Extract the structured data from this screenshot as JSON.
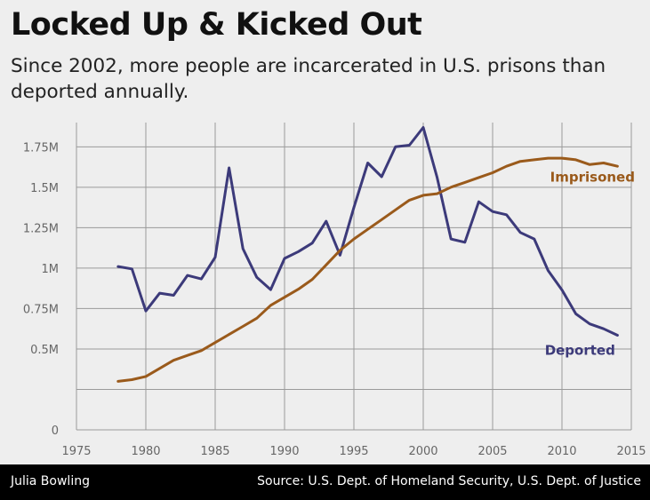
{
  "header": {
    "title": "Locked Up & Kicked Out",
    "subtitle": "Since 2002, more people are incarcerated in U.S. prisons than deported annually."
  },
  "footer": {
    "credit": "Julia Bowling",
    "source": "Source: U.S. Dept. of Homeland Security, U.S. Dept. of Justice"
  },
  "chart_data": {
    "type": "line",
    "xlim": [
      1975,
      2015
    ],
    "ylim": [
      0,
      1900000
    ],
    "x_ticks": [
      1975,
      1980,
      1985,
      1990,
      1995,
      2000,
      2005,
      2010,
      2015
    ],
    "y_ticks": [
      0,
      250000,
      500000,
      750000,
      1000000,
      1250000,
      1500000,
      1750000
    ],
    "y_tick_labels": [
      "0",
      "0.5M",
      "0.75M",
      "1M",
      "1.25M",
      "1.5M",
      "1.75M"
    ],
    "y_tick_label_values": [
      0,
      500000,
      750000,
      1000000,
      1250000,
      1500000,
      1750000
    ],
    "grid": true,
    "series": [
      {
        "name": "Deported",
        "color": "#3c3a7a",
        "x": [
          1978,
          1979,
          1980,
          1981,
          1982,
          1983,
          1984,
          1985,
          1986,
          1987,
          1988,
          1989,
          1990,
          1991,
          1992,
          1993,
          1994,
          1995,
          1996,
          1997,
          1998,
          1999,
          2000,
          2001,
          2002,
          2003,
          2004,
          2005,
          2006,
          2007,
          2008,
          2009,
          2010,
          2011,
          2012,
          2013,
          2014
        ],
        "values": [
          1010000,
          995000,
          735000,
          845000,
          832000,
          955000,
          933000,
          1067000,
          1620000,
          1120000,
          943000,
          867000,
          1060000,
          1102000,
          1155000,
          1290000,
          1080000,
          1375000,
          1650000,
          1565000,
          1750000,
          1760000,
          1870000,
          1560000,
          1180000,
          1160000,
          1410000,
          1350000,
          1330000,
          1220000,
          1180000,
          985000,
          865000,
          717000,
          655000,
          625000,
          585000
        ]
      },
      {
        "name": "Imprisoned",
        "color": "#9a5a1b",
        "x": [
          1978,
          1979,
          1980,
          1981,
          1982,
          1983,
          1984,
          1985,
          1986,
          1987,
          1988,
          1989,
          1990,
          1991,
          1992,
          1993,
          1994,
          1995,
          1996,
          1997,
          1998,
          1999,
          2000,
          2001,
          2002,
          2003,
          2004,
          2005,
          2006,
          2007,
          2008,
          2009,
          2010,
          2011,
          2012,
          2013,
          2014
        ],
        "values": [
          300000,
          310000,
          330000,
          380000,
          430000,
          460000,
          490000,
          540000,
          590000,
          640000,
          690000,
          770000,
          820000,
          870000,
          930000,
          1020000,
          1110000,
          1180000,
          1240000,
          1300000,
          1360000,
          1420000,
          1450000,
          1460000,
          1500000,
          1530000,
          1560000,
          1590000,
          1630000,
          1660000,
          1670000,
          1680000,
          1680000,
          1670000,
          1640000,
          1650000,
          1630000
        ]
      }
    ],
    "series_labels": [
      {
        "name": "Imprisoned",
        "x": 2012.2,
        "y": 1535000
      },
      {
        "name": "Deported",
        "x": 2011.3,
        "y": 465000
      }
    ]
  }
}
